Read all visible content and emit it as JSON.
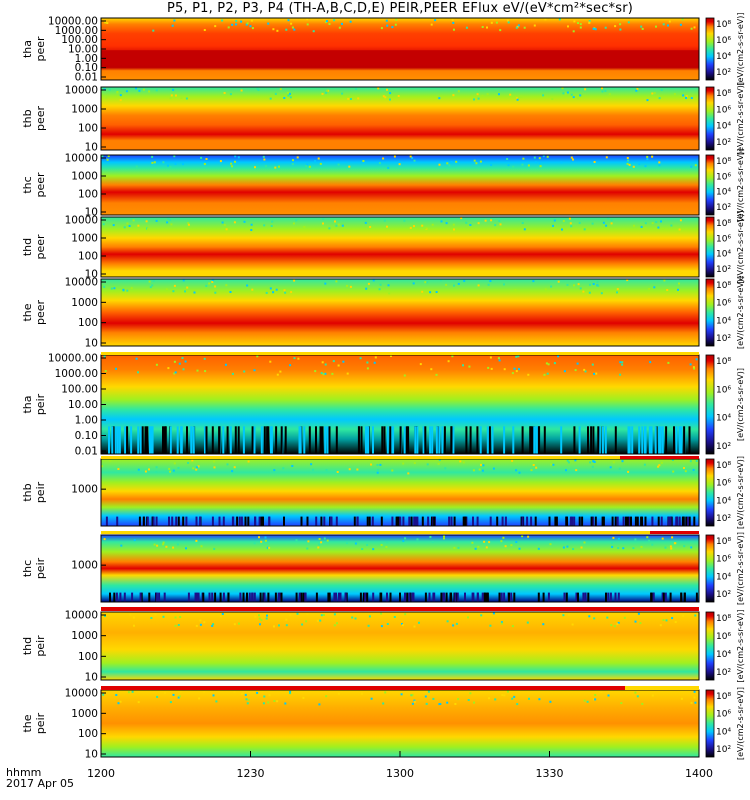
{
  "title": "P5, P1, P2, P3, P4 (TH-A,B,C,D,E) PEIR,PEER EFlux eV/(eV*cm²*sec*sr)",
  "x_label_1": "hhmm",
  "x_label_2": "2017 Apr 05",
  "colorbar_unit": "[eV/(cm2-s-sr-eV)]",
  "colorbar_ticks": [
    "10²",
    "10⁴",
    "10⁶",
    "10⁸"
  ],
  "chart_data": {
    "type": "heatmap",
    "x_ticks": [
      "1200",
      "1230",
      "1300",
      "1330",
      "1400"
    ],
    "x_range": [
      "12:00",
      "14:00"
    ],
    "y_scale": "log",
    "colormap": [
      "#000000",
      "#1b0f8a",
      "#2040ff",
      "#00c8ff",
      "#30e8a0",
      "#a0f020",
      "#ffd800",
      "#ff8000",
      "#e00000",
      "#b00000"
    ],
    "panels": [
      {
        "label1": "tha",
        "label2": "peer",
        "yticks": [
          "10000.00",
          "1000.00",
          "100.00",
          "10.00",
          "1.00",
          "0.10",
          "0.01"
        ],
        "ylim": [
          0.01,
          30000
        ],
        "pattern": "peer-a"
      },
      {
        "label1": "thb",
        "label2": "peer",
        "yticks": [
          "10000",
          "1000",
          "100",
          "10"
        ],
        "ylim": [
          5,
          20000
        ],
        "pattern": "peer-b"
      },
      {
        "label1": "thc",
        "label2": "peer",
        "yticks": [
          "10000",
          "1000",
          "100",
          "10"
        ],
        "ylim": [
          5,
          20000
        ],
        "pattern": "peer-c"
      },
      {
        "label1": "thd",
        "label2": "peer",
        "yticks": [
          "10000",
          "1000",
          "100",
          "10"
        ],
        "ylim": [
          5,
          20000
        ],
        "pattern": "peer-d"
      },
      {
        "label1": "the",
        "label2": "peer",
        "yticks": [
          "10000",
          "1000",
          "100",
          "10"
        ],
        "ylim": [
          5,
          20000
        ],
        "pattern": "peer-e"
      },
      {
        "label1": "tha",
        "label2": "peir",
        "yticks": [
          "10000.00",
          "1000.00",
          "100.00",
          "10.00",
          "1.00",
          "0.10",
          "0.01"
        ],
        "ylim": [
          0.01,
          30000
        ],
        "pattern": "peir-a"
      },
      {
        "label1": "thb",
        "label2": "peir",
        "yticks": [
          "1000"
        ],
        "ylim": [
          5,
          20000
        ],
        "pattern": "peir-b"
      },
      {
        "label1": "thc",
        "label2": "peir",
        "yticks": [
          "1000"
        ],
        "ylim": [
          5,
          20000
        ],
        "pattern": "peir-c"
      },
      {
        "label1": "thd",
        "label2": "peir",
        "yticks": [
          "10000",
          "1000",
          "100",
          "10"
        ],
        "ylim": [
          5,
          20000
        ],
        "pattern": "peir-d"
      },
      {
        "label1": "the",
        "label2": "peir",
        "yticks": [
          "10000",
          "1000",
          "100",
          "10"
        ],
        "ylim": [
          5,
          20000
        ],
        "pattern": "peir-e"
      }
    ]
  }
}
